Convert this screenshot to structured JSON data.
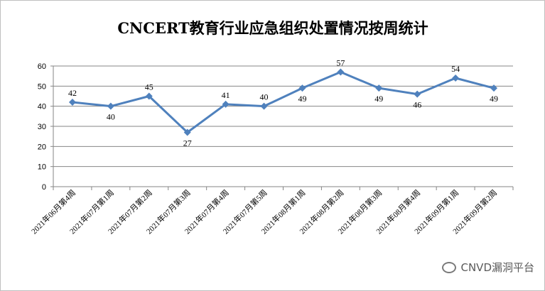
{
  "chart_data": {
    "type": "line",
    "title": "CNCERT教育行业应急组织处置情况按周统计",
    "categories": [
      "2021年06月第4周",
      "2021年07月第1周",
      "2021年07月第2周",
      "2021年07月第3周",
      "2021年07月第4周",
      "2021年07月第5周",
      "2021年08月第1周",
      "2021年08月第2周",
      "2021年08月第3周",
      "2021年08月第4周",
      "2021年09月第1周",
      "2021年09月第2周"
    ],
    "series": [
      {
        "values": [
          42,
          40,
          45,
          27,
          41,
          40,
          49,
          57,
          49,
          46,
          54,
          49
        ]
      }
    ],
    "label_positions": [
      "above",
      "below",
      "above",
      "below",
      "above",
      "above",
      "below",
      "above",
      "below",
      "below",
      "above",
      "below"
    ],
    "ylim": [
      0,
      60
    ],
    "yticks": [
      0,
      10,
      20,
      30,
      40,
      50,
      60
    ],
    "grid": true,
    "legend": "none",
    "line_color": "#4f81bd",
    "axis_color": "#868686"
  },
  "watermark": {
    "text": "CNVD漏洞平台",
    "icon": "wechat-icon"
  }
}
